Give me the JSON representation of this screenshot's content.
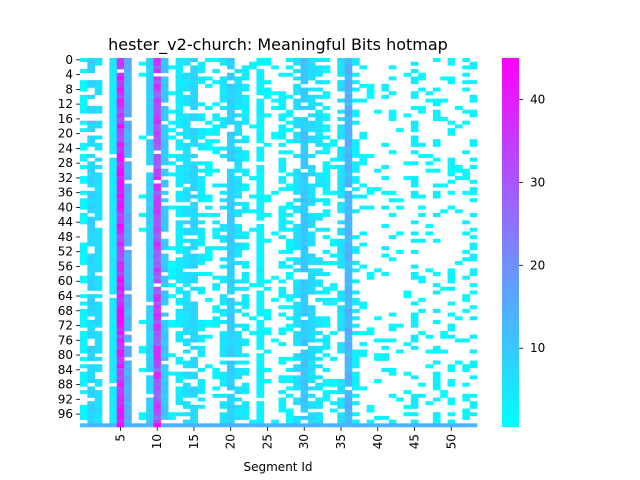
{
  "chart_data": {
    "type": "heatmap",
    "title": "hester_v2-church: Meaningful Bits hotmap",
    "xlabel": "Segment Id",
    "ylabel": "",
    "n_rows": 100,
    "n_cols": 54,
    "x_tick_values": [
      5,
      10,
      15,
      20,
      25,
      30,
      35,
      40,
      45,
      50
    ],
    "x_tick_labels": [
      "5",
      "10",
      "15",
      "20",
      "25",
      "30",
      "35",
      "40",
      "45",
      "50"
    ],
    "y_tick_values": [
      0,
      4,
      8,
      12,
      16,
      20,
      24,
      28,
      32,
      36,
      40,
      44,
      48,
      52,
      56,
      60,
      64,
      68,
      72,
      76,
      80,
      84,
      88,
      92,
      96
    ],
    "y_tick_labels": [
      "0",
      "4",
      "8",
      "12",
      "16",
      "20",
      "24",
      "28",
      "32",
      "36",
      "40",
      "44",
      "48",
      "52",
      "56",
      "60",
      "64",
      "68",
      "72",
      "76",
      "80",
      "84",
      "88",
      "92",
      "96"
    ],
    "colorbar": {
      "min": 0.5,
      "max": 45,
      "ticks": [
        10,
        20,
        30,
        40
      ],
      "tick_labels": [
        "10",
        "20",
        "30",
        "40"
      ],
      "colormap": "cool",
      "low_color": "#00ffff",
      "high_color": "#ff00ff"
    },
    "empty_value_color": "#ffffff",
    "column_profile": [
      2,
      8,
      6,
      0,
      4,
      38,
      14,
      0,
      0,
      8,
      32,
      10,
      2,
      4,
      6,
      8,
      4,
      2,
      3,
      5,
      9,
      6,
      4,
      2,
      3,
      2,
      1,
      3,
      2,
      6,
      10,
      7,
      5,
      3,
      2,
      6,
      14,
      4,
      2,
      1,
      1,
      3,
      2,
      1,
      1,
      4,
      2,
      1,
      3,
      1,
      2,
      1,
      2,
      3
    ],
    "column_density": [
      0.55,
      0.85,
      0.75,
      0.0,
      0.95,
      0.98,
      0.9,
      0.0,
      0.1,
      0.95,
      0.98,
      0.85,
      0.3,
      0.75,
      0.7,
      0.8,
      0.45,
      0.3,
      0.35,
      0.55,
      0.9,
      0.7,
      0.55,
      0.1,
      0.95,
      0.2,
      0.1,
      0.4,
      0.35,
      0.6,
      0.9,
      0.75,
      0.55,
      0.45,
      0.2,
      0.55,
      0.98,
      0.45,
      0.25,
      0.15,
      0.15,
      0.35,
      0.2,
      0.15,
      0.1,
      0.45,
      0.25,
      0.15,
      0.35,
      0.1,
      0.2,
      0.15,
      0.25,
      0.35
    ],
    "bottom_row_values": [
      12,
      14,
      14,
      14,
      14,
      44,
      14,
      14,
      14,
      14,
      44,
      14,
      14,
      14,
      14,
      14,
      14,
      14,
      14,
      14,
      14,
      14,
      14,
      14,
      14,
      14,
      14,
      14,
      14,
      14,
      14,
      14,
      14,
      14,
      14,
      14,
      14,
      14,
      14,
      14,
      14,
      14,
      14,
      14,
      14,
      14,
      14,
      14,
      14,
      14,
      14,
      14,
      14,
      14
    ]
  }
}
